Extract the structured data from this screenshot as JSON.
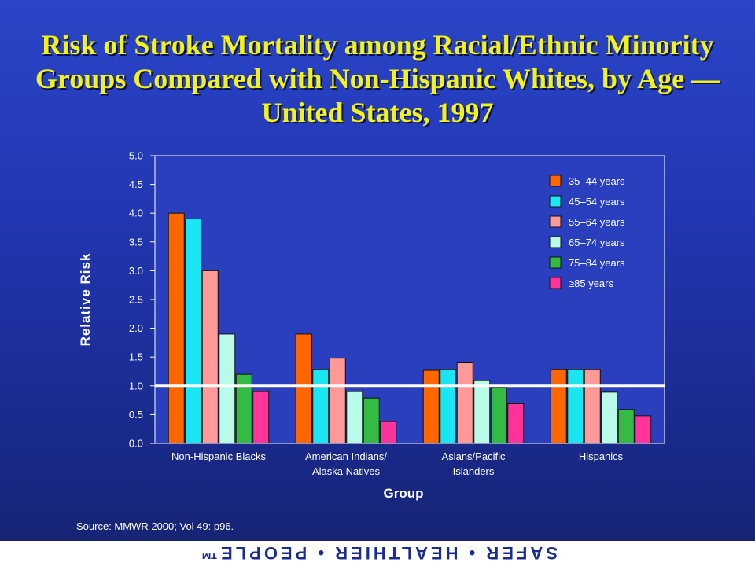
{
  "title": "Risk of Stroke Mortality among Racial/Ethnic Minority Groups Compared with Non-Hispanic Whites, by Age — United States, 1997",
  "source": "Source:  MMWR 2000; Vol 49: p96.",
  "footer_logo": "SAFER • HEALTHIER • PEOPLE™",
  "colors": {
    "title": "#f2f21a",
    "plot_background": "#2a3fbe",
    "reference_line": "#ffffff"
  },
  "chart_data": {
    "type": "bar",
    "title": "Risk of Stroke Mortality among Racial/Ethnic Minority Groups Compared with Non-Hispanic Whites, by Age — United States, 1997",
    "xlabel": "Group",
    "ylabel": "Relative Risk",
    "ylim": [
      0,
      5
    ],
    "yticks": [
      "0.0",
      "0.5",
      "1.0",
      "1.5",
      "2.0",
      "2.5",
      "3.0",
      "3.5",
      "4.0",
      "4.5",
      "5.0"
    ],
    "reference_line": 1.0,
    "legend_position": "top-right",
    "grid": false,
    "categories": [
      [
        "Non-Hispanic Blacks"
      ],
      [
        "American Indians/",
        "Alaska Natives"
      ],
      [
        "Asians/Pacific",
        "Islanders"
      ],
      [
        "Hispanics"
      ]
    ],
    "series": [
      {
        "name": "35–44  years",
        "color": "#ff6600",
        "values": [
          4.0,
          1.9,
          1.27,
          1.28
        ]
      },
      {
        "name": "45–54  years",
        "color": "#19e6f0",
        "values": [
          3.9,
          1.28,
          1.28,
          1.28
        ]
      },
      {
        "name": "55–64  years",
        "color": "#ff9a99",
        "values": [
          3.0,
          1.48,
          1.4,
          1.28
        ]
      },
      {
        "name": "65–74  years",
        "color": "#b8fbe8",
        "values": [
          1.9,
          0.9,
          1.09,
          0.89
        ]
      },
      {
        "name": "75–84  years",
        "color": "#33bb44",
        "values": [
          1.2,
          0.79,
          0.97,
          0.59
        ]
      },
      {
        "name": "≥85 years",
        "color": "#ff3399",
        "values": [
          0.9,
          0.38,
          0.69,
          0.48
        ]
      }
    ]
  }
}
